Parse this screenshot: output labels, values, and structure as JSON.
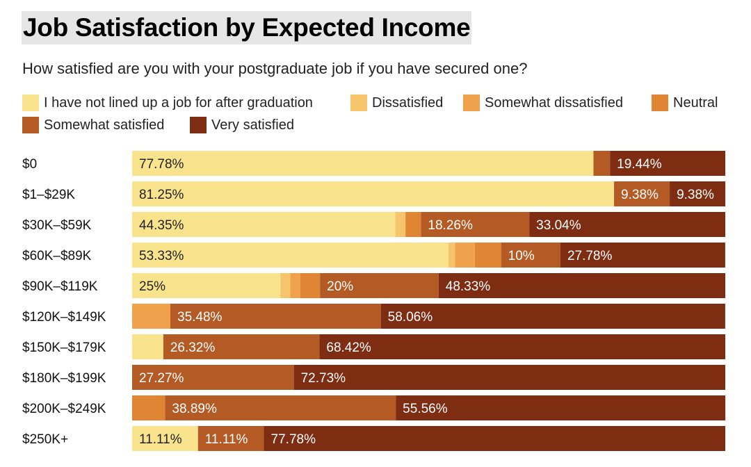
{
  "chart_data": {
    "type": "bar",
    "orientation": "horizontal",
    "stacked": true,
    "title": "Job Satisfaction by Expected Income",
    "subtitle": "How satisfied are you with your postgraduate job if you have secured one?",
    "xlabel": "",
    "ylabel": "",
    "xlim": [
      0,
      100
    ],
    "legend_position": "top",
    "categories": [
      "$0",
      "$1–$29K",
      "$30K–$59K",
      "$60K–$89K",
      "$90K–$119K",
      "$120K–$149K",
      "$150K–$179K",
      "$180K–$199K",
      "$200K–$249K",
      "$250K+"
    ],
    "series": [
      {
        "name": "I have not lined up a job for after graduation",
        "color": "#f9e38d",
        "values": [
          77.78,
          81.25,
          44.35,
          53.33,
          25,
          0,
          5.26,
          0,
          0,
          11.11
        ],
        "labels": [
          "77.78%",
          "81.25%",
          "44.35%",
          "53.33%",
          "25%",
          "",
          "",
          "",
          "",
          "11.11%"
        ]
      },
      {
        "name": "Dissatisfied",
        "color": "#f6c46b",
        "values": [
          0,
          0,
          1.74,
          1.11,
          1.67,
          0,
          0,
          0,
          0,
          0
        ],
        "labels": [
          "",
          "",
          "",
          "",
          "",
          "",
          "",
          "",
          "",
          ""
        ]
      },
      {
        "name": "Somewhat dissatisfied",
        "color": "#efa24b",
        "values": [
          0,
          0,
          0,
          3.33,
          1.67,
          6.45,
          0,
          0,
          0,
          0
        ],
        "labels": [
          "",
          "",
          "",
          "",
          "",
          "",
          "",
          "",
          "",
          ""
        ]
      },
      {
        "name": "Neutral",
        "color": "#df8534",
        "values": [
          0,
          0,
          2.61,
          4.44,
          3.33,
          0,
          0,
          0,
          5.56,
          0
        ],
        "labels": [
          "",
          "",
          "",
          "",
          "",
          "",
          "",
          "",
          "",
          ""
        ]
      },
      {
        "name": "Somewhat satisfied",
        "color": "#b45a24",
        "values": [
          2.78,
          9.38,
          18.26,
          10,
          20,
          35.48,
          26.32,
          27.27,
          38.89,
          11.11
        ],
        "labels": [
          "",
          "9.38%",
          "18.26%",
          "10%",
          "20%",
          "35.48%",
          "26.32%",
          "27.27%",
          "38.89%",
          "11.11%"
        ]
      },
      {
        "name": "Very satisfied",
        "color": "#7f2d12",
        "values": [
          19.44,
          9.38,
          33.04,
          27.78,
          48.33,
          58.06,
          68.42,
          72.73,
          55.56,
          77.78
        ],
        "labels": [
          "19.44%",
          "9.38%",
          "33.04%",
          "27.78%",
          "48.33%",
          "58.06%",
          "68.42%",
          "72.73%",
          "55.56%",
          "77.78%"
        ]
      }
    ]
  }
}
